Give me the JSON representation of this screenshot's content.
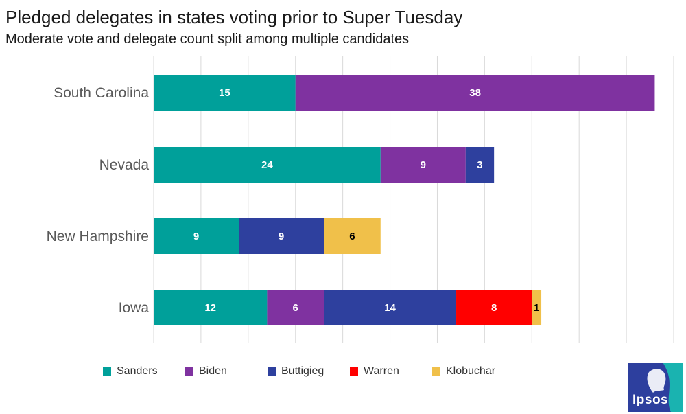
{
  "title": "Pledged delegates in states voting prior to Super Tuesday",
  "subtitle": "Moderate vote and delegate count split among multiple candidates",
  "colors": {
    "Sanders": "#00a09a",
    "Biden": "#7f32a0",
    "Buttigieg": "#2e409e",
    "Warren": "#ff0000",
    "Klobuchar": "#f0c04a",
    "logo_bg": "#2d3f9e",
    "logo_accent": "#1ab3b0"
  },
  "logo": {
    "text": "Ipsos"
  },
  "chart_data": {
    "type": "bar",
    "orientation": "horizontal",
    "stacked": true,
    "title": "Pledged delegates in states voting prior to Super Tuesday",
    "subtitle": "Moderate vote and delegate count split among multiple candidates",
    "categories": [
      "South Carolina",
      "Nevada",
      "New Hampshire",
      "Iowa"
    ],
    "series": [
      {
        "name": "Sanders",
        "values": [
          15,
          24,
          9,
          12
        ]
      },
      {
        "name": "Biden",
        "values": [
          38,
          9,
          0,
          6
        ]
      },
      {
        "name": "Buttigieg",
        "values": [
          0,
          3,
          9,
          14
        ]
      },
      {
        "name": "Warren",
        "values": [
          0,
          0,
          0,
          8
        ]
      },
      {
        "name": "Klobuchar",
        "values": [
          0,
          0,
          6,
          1
        ]
      }
    ],
    "xlim": [
      0,
      55
    ],
    "grid": "vertical",
    "legend": "bottom"
  }
}
